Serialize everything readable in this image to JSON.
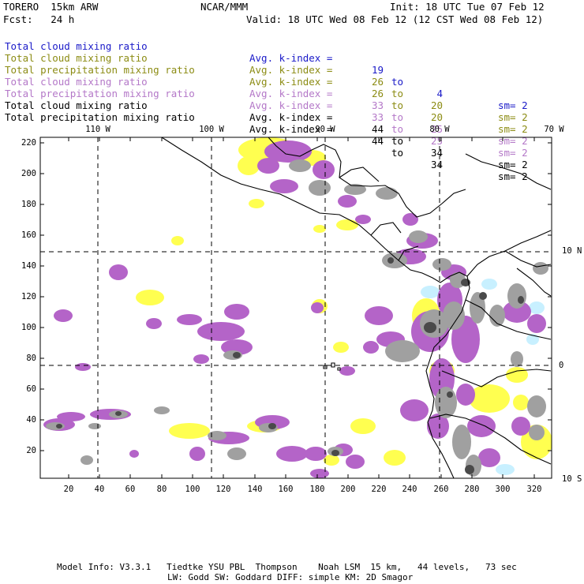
{
  "header": {
    "model": "TORERO  15km ARW",
    "center": "NCAR/MMM",
    "init": "Init: 18 UTC Tue 07 Feb 12",
    "forecast": "Fcst:   24 h",
    "valid": "Valid: 18 UTC Wed 08 Feb 12 (12 CST Wed 08 Feb 12)"
  },
  "legend": [
    {
      "field": "Total cloud mixing ratio",
      "kindex_label": "Avg. k-index =",
      "v1": "19",
      "to": "to",
      "v2": "4",
      "sm": "sm= 2",
      "color": "#1a1ac8"
    },
    {
      "field": "Total cloud mixing ratio",
      "kindex_label": "Avg. k-index =",
      "v1": "26",
      "to": "to",
      "v2": "20",
      "sm": "sm= 2",
      "color": "#8c8c14"
    },
    {
      "field": "Total precipitation mixing ratio",
      "kindex_label": "Avg. k-index =",
      "v1": "26",
      "to": "to",
      "v2": "20",
      "sm": "sm= 2",
      "color": "#8c8c14"
    },
    {
      "field": "Total cloud mixing ratio",
      "kindex_label": "Avg. k-index =",
      "v1": "33",
      "to": "to",
      "v2": "25",
      "sm": "sm= 2",
      "color": "#b478c8"
    },
    {
      "field": "Total precipitation mixing ratio",
      "kindex_label": "Avg. k-index =",
      "v1": "33",
      "to": "to",
      "v2": "25",
      "sm": "sm= 2",
      "color": "#b478c8"
    },
    {
      "field": "Total cloud mixing ratio",
      "kindex_label": "Avg. k-index =",
      "v1": "44",
      "to": "to",
      "v2": "34",
      "sm": "sm= 2",
      "color": "#000000"
    },
    {
      "field": "Total precipitation mixing ratio",
      "kindex_label": "Avg. k-index =",
      "v1": "44",
      "to": "to",
      "v2": "34",
      "sm": "sm= 2",
      "color": "#000000"
    }
  ],
  "axes": {
    "y_ticks": [
      "220",
      "200",
      "180",
      "160",
      "140",
      "120",
      "100",
      "80",
      "60",
      "40",
      "20"
    ],
    "x_ticks": [
      "20",
      "40",
      "60",
      "80",
      "100",
      "120",
      "140",
      "160",
      "180",
      "200",
      "220",
      "240",
      "260",
      "280",
      "300",
      "320"
    ],
    "lon_labels": [
      "110 W",
      "100 W",
      "90 W",
      "80 W",
      "70 W"
    ],
    "lat_labels": [
      "10 N",
      "0",
      "10 S"
    ]
  },
  "colors": {
    "yellow": "#ffff50",
    "purple": "#b464c8",
    "gray": "#a0a0a0",
    "darkgray": "#4a4a4a",
    "lightcyan": "#c8f0ff",
    "coast": "#000000"
  },
  "footer": {
    "line1": "Model Info: V3.3.1   Tiedtke YSU PBL  Thompson    Noah LSM  15 km,   44 levels,   73 sec",
    "line2": "LW: Godd SW: Goddard DIFF: simple KM: 2D Smagor"
  }
}
